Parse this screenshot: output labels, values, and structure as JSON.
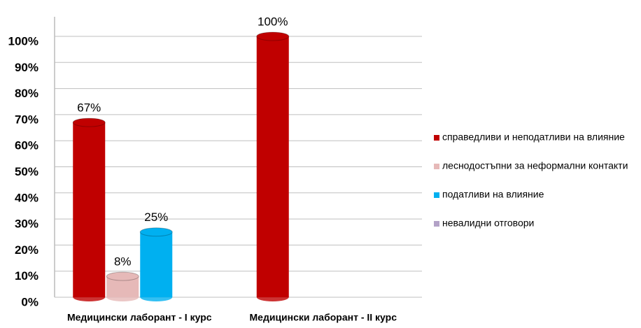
{
  "chart_data": {
    "type": "bar",
    "categories": [
      "Медицински лаборант - I курс",
      "Медицински лаборант - II курс"
    ],
    "series": [
      {
        "name": "справедливи и неподатливи на влияние",
        "color": "#c00000",
        "values": [
          67,
          100
        ],
        "value_labels": [
          "67%",
          "100%"
        ]
      },
      {
        "name": "леснодостъпни за неформални контакти",
        "color": "#e6b9b8",
        "values": [
          8,
          null
        ],
        "value_labels": [
          "8%",
          null
        ]
      },
      {
        "name": "податливи на влияние",
        "color": "#00b0f0",
        "values": [
          25,
          null
        ],
        "value_labels": [
          "25%",
          null
        ]
      },
      {
        "name": "невалидни отговори",
        "color": "#b3a2c7",
        "values": [
          null,
          null
        ],
        "value_labels": [
          null,
          null
        ]
      }
    ],
    "ylim": [
      0,
      100
    ],
    "yticks": [
      {
        "value": 0,
        "label": "0%"
      },
      {
        "value": 10,
        "label": "10%"
      },
      {
        "value": 20,
        "label": "20%"
      },
      {
        "value": 30,
        "label": "30%"
      },
      {
        "value": 40,
        "label": "40%"
      },
      {
        "value": 50,
        "label": "50%"
      },
      {
        "value": 60,
        "label": "60%"
      },
      {
        "value": 70,
        "label": "70%"
      },
      {
        "value": 80,
        "label": "80%"
      },
      {
        "value": 90,
        "label": "90%"
      },
      {
        "value": 100,
        "label": "100%"
      }
    ],
    "grid": true,
    "legend": "right"
  }
}
